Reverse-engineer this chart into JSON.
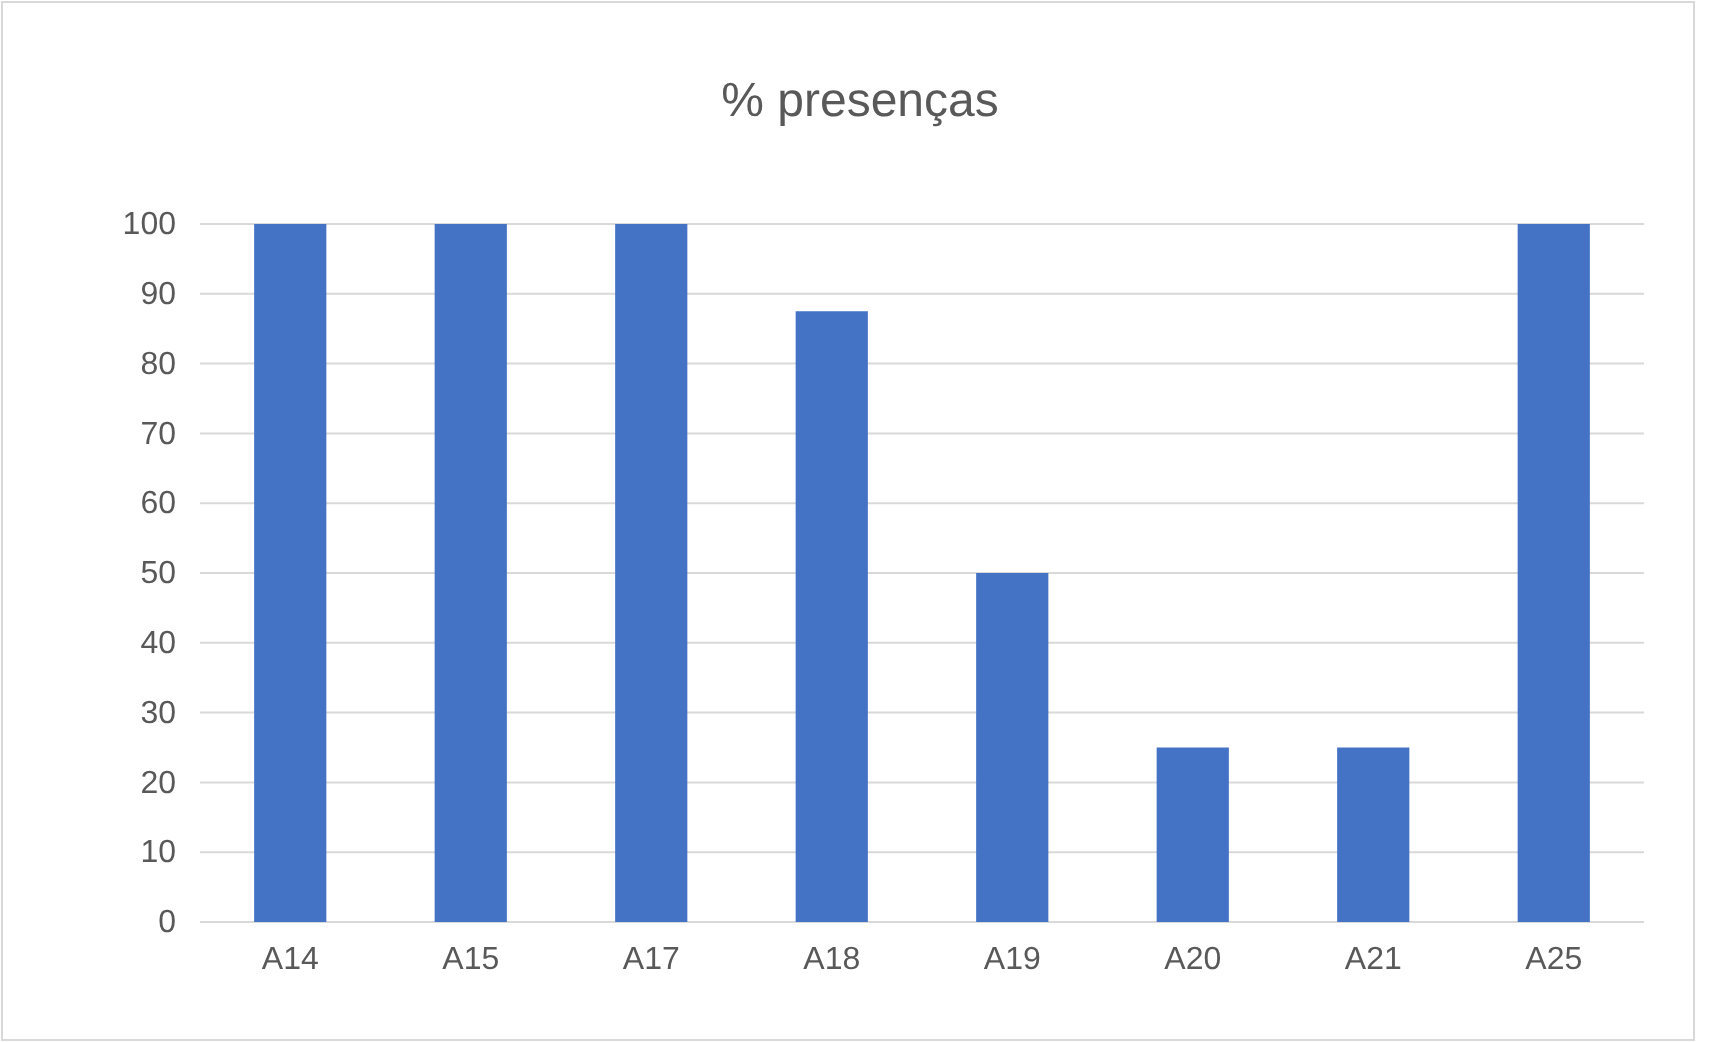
{
  "chart_data": {
    "type": "bar",
    "title": "% presenças",
    "categories": [
      "A14",
      "A15",
      "A17",
      "A18",
      "A19",
      "A20",
      "A21",
      "A25"
    ],
    "values": [
      100,
      100,
      100,
      87.5,
      50,
      25,
      25,
      100
    ],
    "color": "#4472c4",
    "ylim": [
      0,
      100
    ],
    "yticks": [
      0,
      10,
      20,
      30,
      40,
      50,
      60,
      70,
      80,
      90,
      100
    ],
    "grid": "y"
  }
}
